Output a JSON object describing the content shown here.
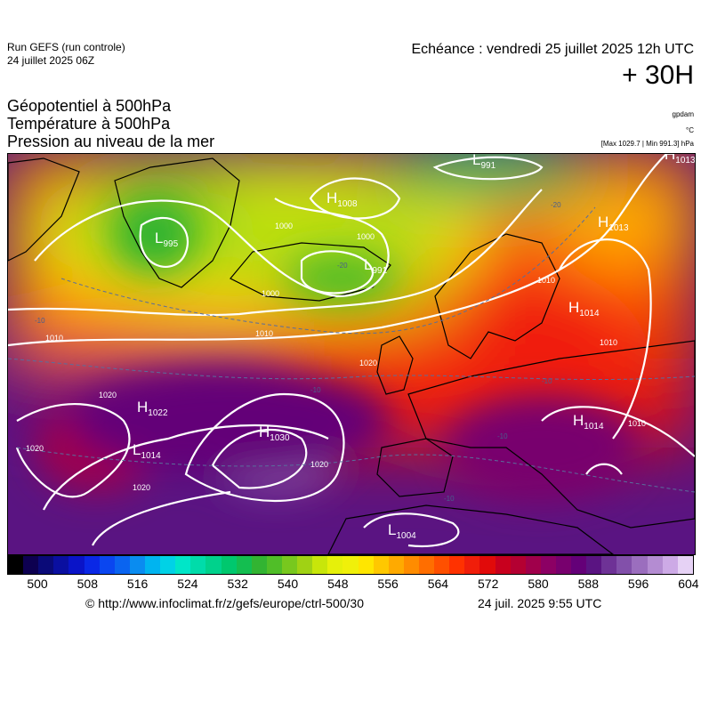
{
  "header": {
    "run_title": "Run GEFS (run controle)",
    "run_date": "24 juillet 2025 06Z",
    "echeance": "Echéance : vendredi 25 juillet 2025 12h UTC",
    "horizon": "+ 30H"
  },
  "layers": {
    "geopotential": "Géopotentiel à 500hPa",
    "temperature": "Température à 500hPa",
    "pressure": "Pression au niveau de la mer"
  },
  "units": {
    "geopotential": "gpdam",
    "temperature": "°C",
    "pressure": "[Max 1029.7 | Min 991.3] hPa"
  },
  "map": {
    "pressure_centers": [
      {
        "type": "L",
        "value": "991"
      },
      {
        "type": "H",
        "value": "1013"
      },
      {
        "type": "H",
        "value": "1013"
      },
      {
        "type": "H",
        "value": "1008"
      },
      {
        "type": "L",
        "value": "995"
      },
      {
        "type": "L",
        "value": "991"
      },
      {
        "type": "H",
        "value": "1014"
      },
      {
        "type": "H",
        "value": "1022"
      },
      {
        "type": "H",
        "value": "1030"
      },
      {
        "type": "L",
        "value": "1014"
      },
      {
        "type": "H",
        "value": "1014"
      },
      {
        "type": "L",
        "value": "1004"
      }
    ],
    "isobar_labels": [
      "1000",
      "1000",
      "1000",
      "1010",
      "1010",
      "1010",
      "1010",
      "1020",
      "1020",
      "1020",
      "1020",
      "1020",
      "1010"
    ],
    "temperature_labels": [
      "-20",
      "-20",
      "-10",
      "-10",
      "-10",
      "-10",
      "-10"
    ]
  },
  "colorbar": {
    "colors": [
      "#000000",
      "#0d0050",
      "#0a0a78",
      "#0a0fa0",
      "#0a14c8",
      "#0a28e6",
      "#0a46f0",
      "#0a64f0",
      "#0a8cf0",
      "#00b4f0",
      "#00d2e6",
      "#00e6c8",
      "#00dcaa",
      "#00d28c",
      "#00c86e",
      "#14be50",
      "#32b432",
      "#50be28",
      "#78c81e",
      "#a0d214",
      "#c8e60a",
      "#e6f00a",
      "#f0f00a",
      "#ffe600",
      "#ffc800",
      "#ffaa00",
      "#ff8c00",
      "#ff6e00",
      "#ff5000",
      "#ff3200",
      "#f01e0a",
      "#e10a0a",
      "#c8001e",
      "#b40032",
      "#a0004b",
      "#8c0064",
      "#78006e",
      "#640078",
      "#5a1482",
      "#6e3296",
      "#8250aa",
      "#9b6ebe",
      "#b48cd2",
      "#cdaae6",
      "#e6d2f5"
    ],
    "tick_labels": [
      "500",
      "508",
      "516",
      "524",
      "532",
      "540",
      "548",
      "556",
      "564",
      "572",
      "580",
      "588",
      "596",
      "604"
    ]
  },
  "footer": {
    "credit": "© http://www.infoclimat.fr/z/gefs/europe/ctrl-500/30",
    "generated": "24 juil. 2025  9:55 UTC"
  }
}
